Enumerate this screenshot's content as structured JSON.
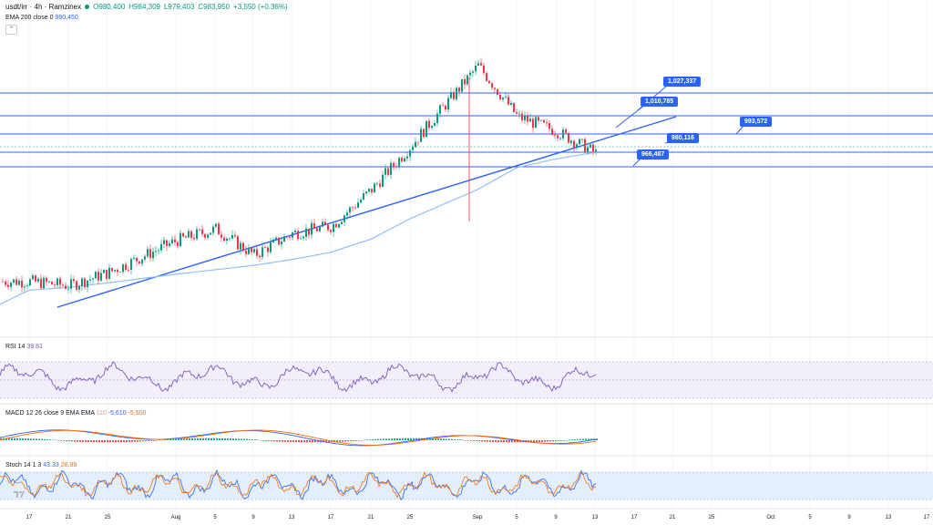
{
  "header": {
    "symbol": "usdt/irr · 4h · Ramzinex",
    "open": "O980,400",
    "high": "H984,309",
    "low": "L979,403",
    "close": "C983,950",
    "change": "+3,550 (+0.36%)",
    "ema_label": "EMA 200 close 0",
    "ema_value": "980,450"
  },
  "price_labels": [
    "1,027,337",
    "1,010,785",
    "993,572",
    "980,116",
    "966,487"
  ],
  "indicators": {
    "rsi_label": "RSI 14",
    "rsi_value": "39.81",
    "macd_label": "MACD 12 26 close 9 EMA EMA",
    "macd_values": [
      "110",
      "-5,610",
      "-5,500"
    ],
    "stoch_label": "Stoch 14 1 3",
    "stoch_values": [
      "43.33",
      "28.99"
    ]
  },
  "x_ticks": [
    "17",
    "21",
    "25",
    "Aug",
    "5",
    "9",
    "13",
    "17",
    "21",
    "25",
    "Sep",
    "5",
    "9",
    "13",
    "17",
    "21",
    "25",
    "Oct",
    "5",
    "9",
    "13",
    "17"
  ],
  "colors": {
    "up": "#089981",
    "down": "#f23645",
    "accent": "#2962ff",
    "rsi": "#7e57c2",
    "macd": "#2962ff",
    "signal": "#ff6d00"
  },
  "chart_data": [
    {
      "type": "line",
      "title": "usdt/irr · 4h · Ramzinex",
      "x": [
        "17",
        "21",
        "25",
        "Aug",
        "5",
        "9",
        "13",
        "17",
        "21",
        "25",
        "Sep",
        "5",
        "9",
        "13"
      ],
      "series": [
        {
          "name": "close",
          "values": [
            892000,
            889000,
            898000,
            920000,
            928000,
            910000,
            925000,
            930000,
            955000,
            985000,
            1040000,
            1005000,
            995000,
            980000
          ]
        },
        {
          "name": "EMA 200 close 0",
          "values": [
            886000,
            888000,
            891000,
            897000,
            900000,
            903000,
            907000,
            912000,
            921000,
            935000,
            955000,
            970000,
            976000,
            980450
          ]
        }
      ],
      "horizontal_levels": [
        1027337,
        1010785,
        993572,
        980116,
        966487
      ],
      "ylim": [
        860000,
        1060000
      ]
    }
  ]
}
